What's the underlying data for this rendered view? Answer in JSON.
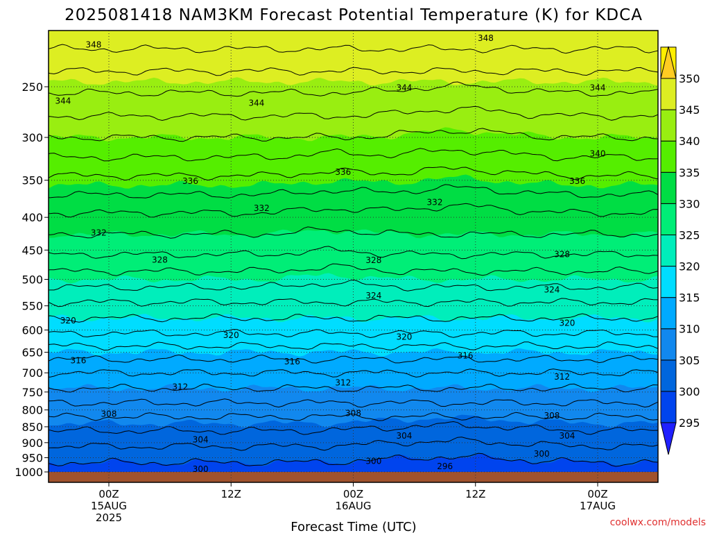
{
  "chart_data": {
    "type": "heatmap",
    "title": "2025081418 NAM3KM Forecast Potential Temperature (K) for KDCA",
    "xlabel": "Forecast Time (UTC)",
    "ylabel": "",
    "credit": "coolwx.com/models",
    "x_hours_range": [
      -6,
      54
    ],
    "x_ticks": [
      {
        "hour": 0,
        "lines": [
          "00Z",
          "15AUG",
          "2025"
        ]
      },
      {
        "hour": 12,
        "lines": [
          "12Z"
        ]
      },
      {
        "hour": 24,
        "lines": [
          "00Z",
          "16AUG"
        ]
      },
      {
        "hour": 36,
        "lines": [
          "12Z"
        ]
      },
      {
        "hour": 48,
        "lines": [
          "00Z",
          "17AUG"
        ]
      }
    ],
    "y_scale": "log",
    "y_inverted": true,
    "ylim_hPa": [
      1000,
      200
    ],
    "y_ticks": [
      250,
      300,
      350,
      400,
      450,
      500,
      550,
      600,
      650,
      700,
      750,
      800,
      850,
      900,
      950,
      1000
    ],
    "colorbar": {
      "levels": [
        295,
        300,
        305,
        310,
        315,
        320,
        325,
        330,
        335,
        340,
        345,
        350
      ],
      "colors": [
        "#2020ff",
        "#0044ee",
        "#0066dd",
        "#1188ee",
        "#00aaff",
        "#00ddff",
        "#00eebb",
        "#00ee77",
        "#00dd44",
        "#55ee00",
        "#99ee11",
        "#ddee22",
        "#ffee00",
        "#ffcc22"
      ],
      "extend": "both"
    },
    "profile": [
      {
        "p": 1000,
        "theta": 299.0
      },
      {
        "p": 950,
        "theta": 300.5
      },
      {
        "p": 900,
        "theta": 302.5
      },
      {
        "p": 850,
        "theta": 304.5
      },
      {
        "p": 800,
        "theta": 307.0
      },
      {
        "p": 750,
        "theta": 309.5
      },
      {
        "p": 700,
        "theta": 312.0
      },
      {
        "p": 650,
        "theta": 315.0
      },
      {
        "p": 600,
        "theta": 318.5
      },
      {
        "p": 550,
        "theta": 321.5
      },
      {
        "p": 500,
        "theta": 325.0
      },
      {
        "p": 450,
        "theta": 328.5
      },
      {
        "p": 400,
        "theta": 331.5
      },
      {
        "p": 350,
        "theta": 335.5
      },
      {
        "p": 300,
        "theta": 340.0
      },
      {
        "p": 250,
        "theta": 344.5
      },
      {
        "p": 200,
        "theta": 350.0
      }
    ],
    "contour_labels": [
      {
        "value": 348,
        "hour": -1.5,
        "p": 215
      },
      {
        "value": 348,
        "hour": 37,
        "p": 210
      },
      {
        "value": 344,
        "hour": -4.5,
        "p": 263
      },
      {
        "value": 344,
        "hour": 14.5,
        "p": 265
      },
      {
        "value": 344,
        "hour": 29,
        "p": 251
      },
      {
        "value": 344,
        "hour": 48,
        "p": 251
      },
      {
        "value": 340,
        "hour": 48,
        "p": 318
      },
      {
        "value": 336,
        "hour": 8,
        "p": 351
      },
      {
        "value": 336,
        "hour": 23,
        "p": 340
      },
      {
        "value": 336,
        "hour": 46,
        "p": 351
      },
      {
        "value": 332,
        "hour": -1,
        "p": 423
      },
      {
        "value": 332,
        "hour": 15,
        "p": 387
      },
      {
        "value": 332,
        "hour": 32,
        "p": 379
      },
      {
        "value": 328,
        "hour": 5,
        "p": 466
      },
      {
        "value": 328,
        "hour": 26,
        "p": 467
      },
      {
        "value": 328,
        "hour": 44.5,
        "p": 457
      },
      {
        "value": 324,
        "hour": 26,
        "p": 530
      },
      {
        "value": 324,
        "hour": 43.5,
        "p": 519
      },
      {
        "value": 320,
        "hour": -4,
        "p": 580
      },
      {
        "value": 320,
        "hour": 12,
        "p": 611
      },
      {
        "value": 320,
        "hour": 29,
        "p": 615
      },
      {
        "value": 320,
        "hour": 45,
        "p": 585
      },
      {
        "value": 316,
        "hour": -3,
        "p": 670
      },
      {
        "value": 316,
        "hour": 18,
        "p": 672
      },
      {
        "value": 316,
        "hour": 35,
        "p": 658
      },
      {
        "value": 312,
        "hour": 7,
        "p": 736
      },
      {
        "value": 312,
        "hour": 23,
        "p": 725
      },
      {
        "value": 312,
        "hour": 44.5,
        "p": 710
      },
      {
        "value": 308,
        "hour": 0,
        "p": 812
      },
      {
        "value": 308,
        "hour": 24,
        "p": 810
      },
      {
        "value": 308,
        "hour": 43.5,
        "p": 817
      },
      {
        "value": 304,
        "hour": 9,
        "p": 890
      },
      {
        "value": 304,
        "hour": 29,
        "p": 878
      },
      {
        "value": 304,
        "hour": 45,
        "p": 878
      },
      {
        "value": 300,
        "hour": 9,
        "p": 990
      },
      {
        "value": 300,
        "hour": 26,
        "p": 962
      },
      {
        "value": 300,
        "hour": 42.5,
        "p": 937
      },
      {
        "value": 296,
        "hour": 33,
        "p": 980
      }
    ]
  }
}
